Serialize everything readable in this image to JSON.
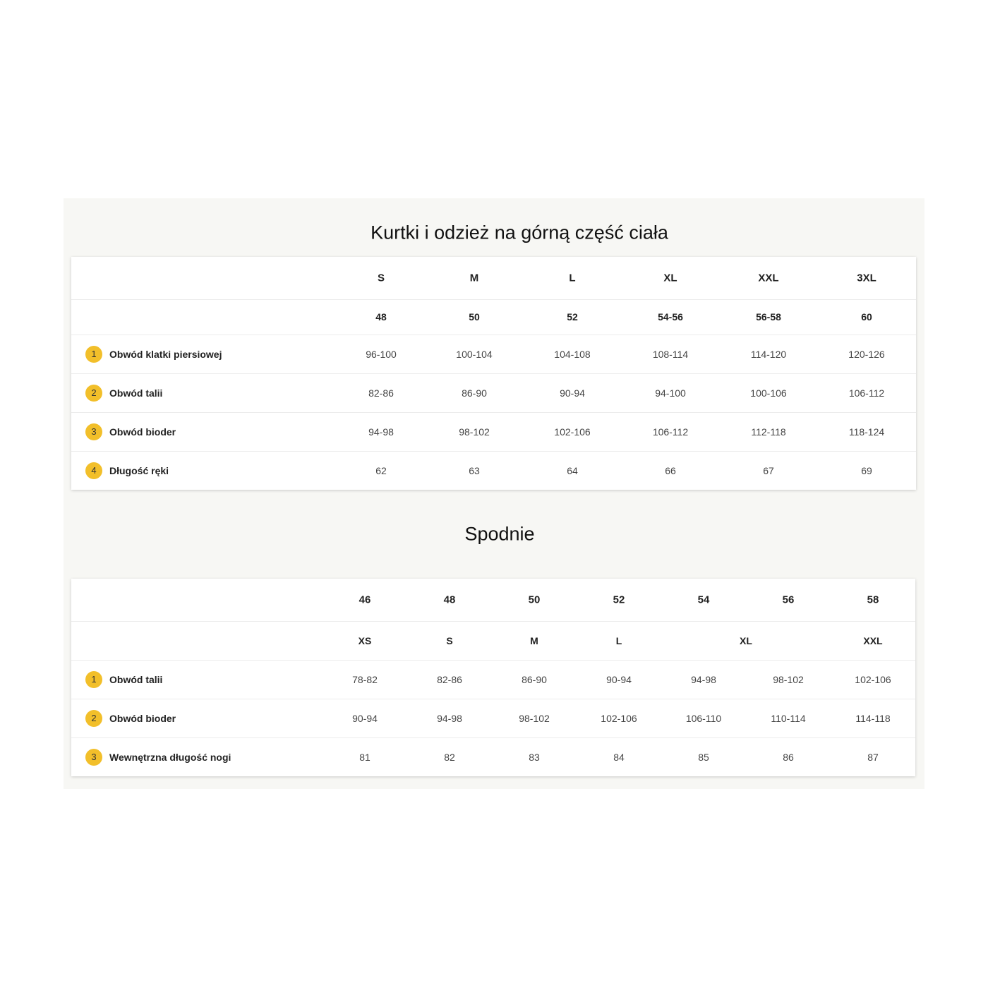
{
  "tables": [
    {
      "title": "Kurtki i odzież na górną część ciała",
      "header_rows": [
        [
          "S",
          "M",
          "L",
          "XL",
          "XXL",
          "3XL"
        ],
        [
          "48",
          "50",
          "52",
          "54-56",
          "56-58",
          "60"
        ]
      ],
      "rows": [
        {
          "number": "1",
          "label": "Obwód klatki piersiowej",
          "values": [
            "96-100",
            "100-104",
            "104-108",
            "108-114",
            "114-120",
            "120-126"
          ]
        },
        {
          "number": "2",
          "label": "Obwód talii",
          "values": [
            "82-86",
            "86-90",
            "90-94",
            "94-100",
            "100-106",
            "106-112"
          ]
        },
        {
          "number": "3",
          "label": "Obwód bioder",
          "values": [
            "94-98",
            "98-102",
            "102-106",
            "106-112",
            "112-118",
            "118-124"
          ]
        },
        {
          "number": "4",
          "label": "Długość ręki",
          "values": [
            "62",
            "63",
            "64",
            "66",
            "67",
            "69"
          ]
        }
      ]
    },
    {
      "title": "Spodnie",
      "header_rows": [
        [
          "46",
          "48",
          "50",
          "52",
          "54",
          "56",
          "58"
        ],
        [
          "XS",
          "S",
          "M",
          "L",
          "XL",
          null,
          "XXL"
        ]
      ],
      "rows": [
        {
          "number": "1",
          "label": "Obwód talii",
          "values": [
            "78-82",
            "82-86",
            "86-90",
            "90-94",
            "94-98",
            "98-102",
            "102-106"
          ]
        },
        {
          "number": "2",
          "label": "Obwód bioder",
          "values": [
            "90-94",
            "94-98",
            "98-102",
            "102-106",
            "106-110",
            "110-114",
            "114-118"
          ]
        },
        {
          "number": "3",
          "label": "Wewnętrzna długość nogi",
          "values": [
            "81",
            "82",
            "83",
            "84",
            "85",
            "86",
            "87"
          ]
        }
      ]
    }
  ]
}
